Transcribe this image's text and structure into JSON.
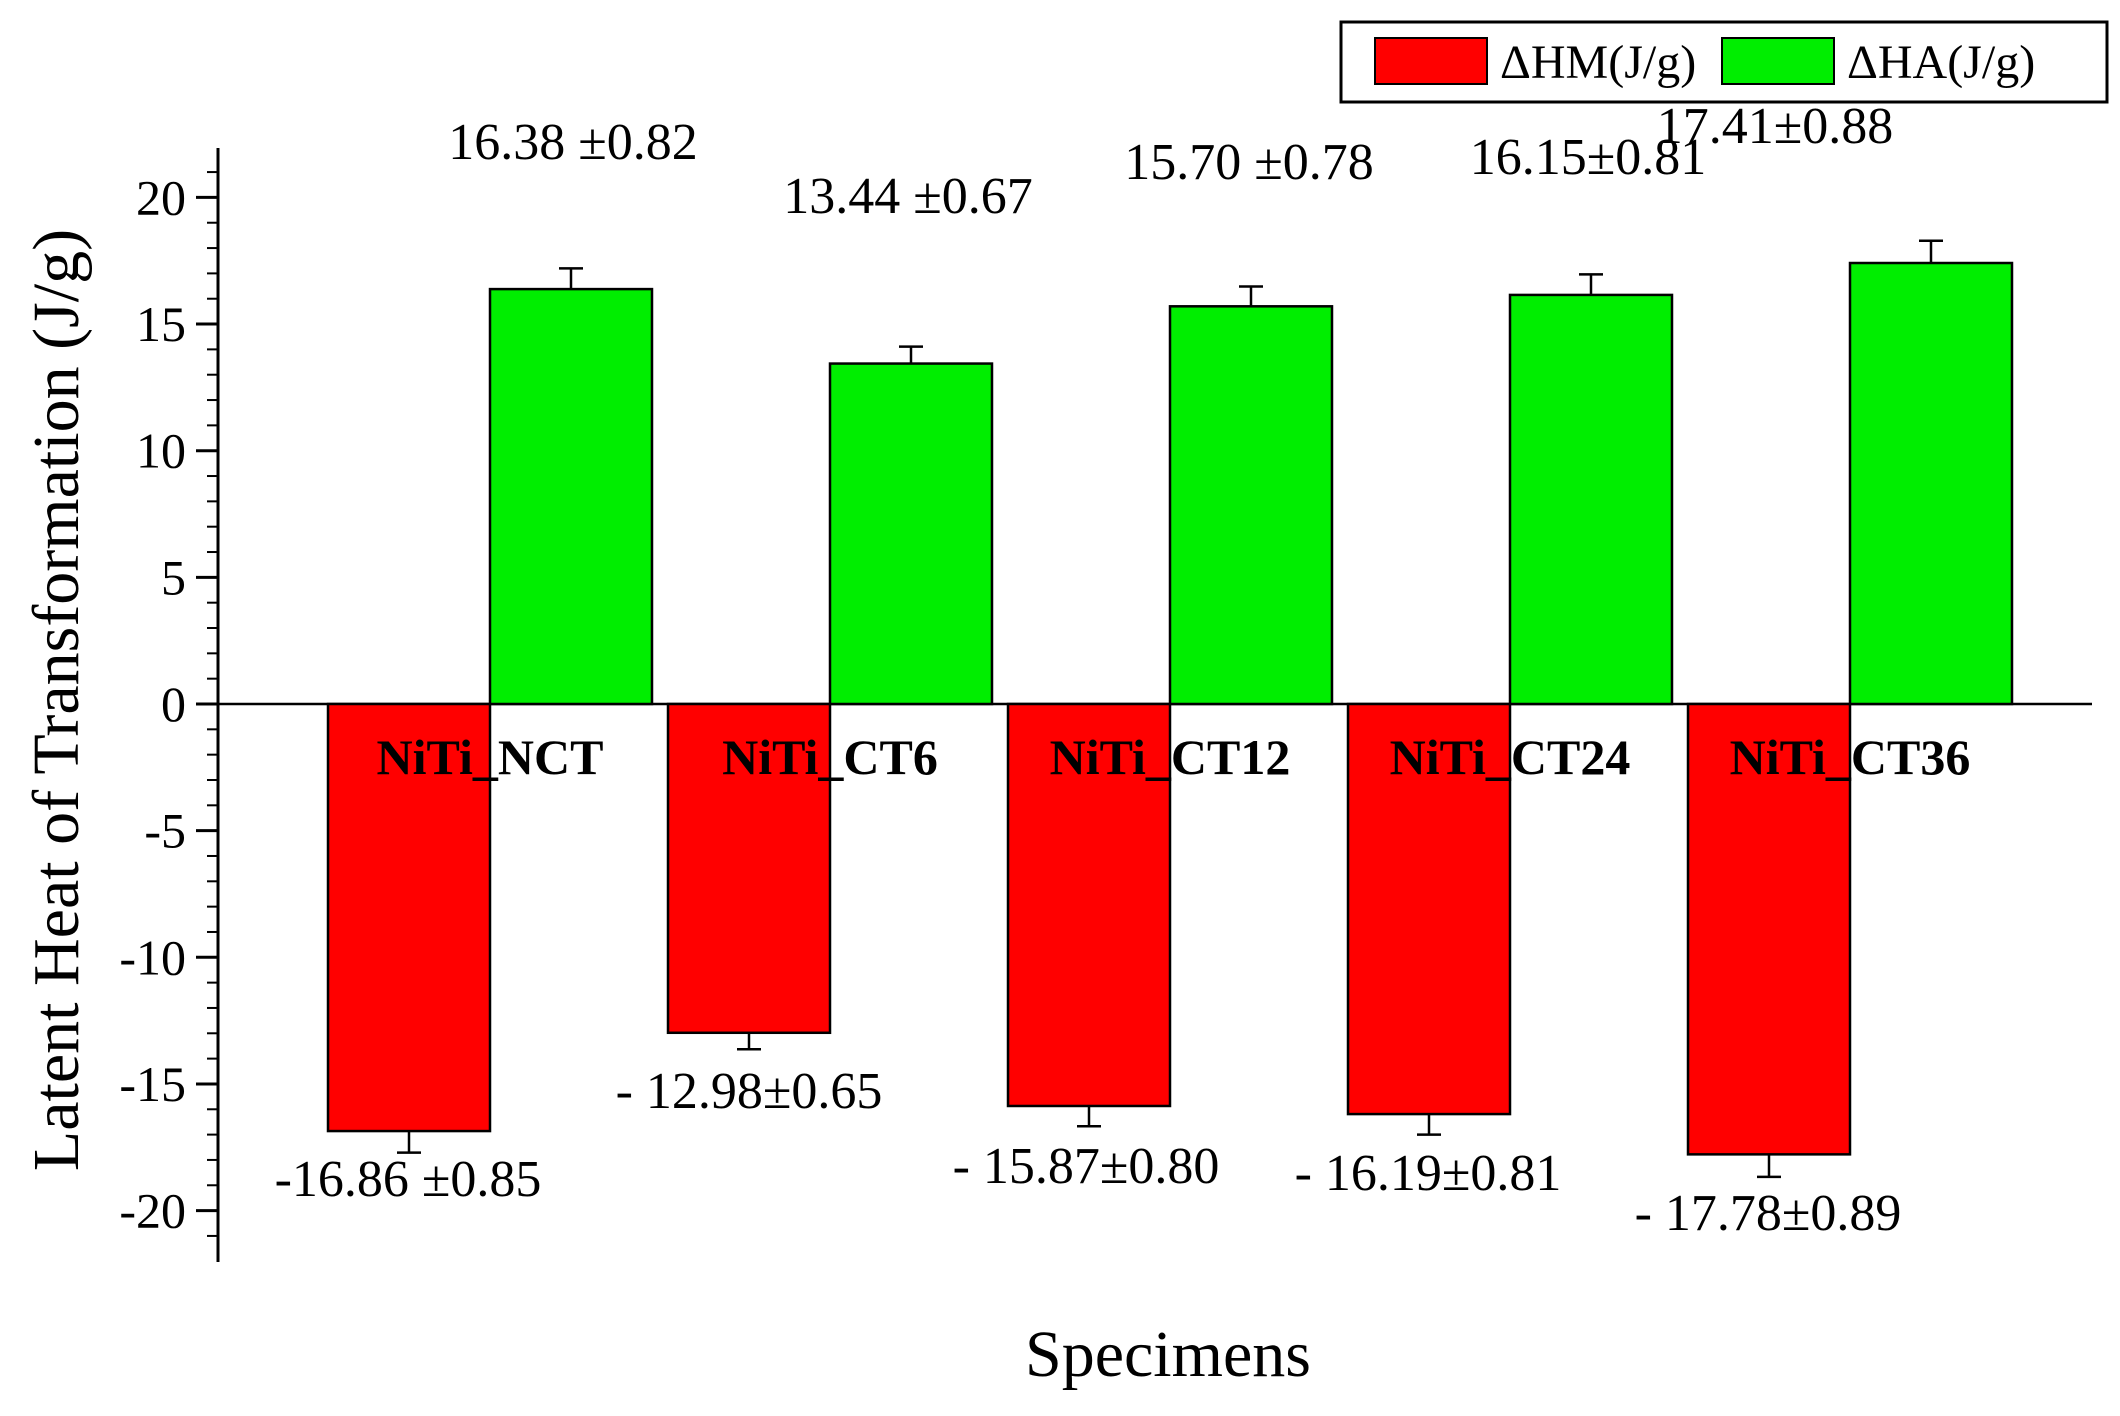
{
  "chart_data": {
    "type": "bar",
    "title": "",
    "xlabel": "Specimens",
    "ylabel": "Latent Heat of Transformation (J/g)",
    "ylim": [
      -22,
      22
    ],
    "yticks": [
      20,
      15,
      10,
      5,
      0,
      -5,
      -10,
      -15,
      -20
    ],
    "ytick_labels": [
      "20",
      "15",
      "10",
      "5",
      "0",
      "-5",
      "-10",
      "-15",
      "-20"
    ],
    "grid": false,
    "legend_position": "top-right",
    "categories": [
      "NiTi_NCT",
      "NiTi_CT6",
      "NiTi_CT12",
      "NiTi_CT24",
      "NiTi_CT36"
    ],
    "series": [
      {
        "name": "ΔHM(J/g)",
        "color": "#ff0000",
        "values": [
          -16.86,
          -12.98,
          -15.87,
          -16.19,
          -17.78
        ],
        "errors": [
          0.85,
          0.65,
          0.8,
          0.81,
          0.89
        ],
        "labels": [
          "-16.86 ±0.85",
          "- 12.98±0.65",
          "- 15.87±0.80",
          "- 16.19±0.81",
          "- 17.78±0.89"
        ]
      },
      {
        "name": "ΔHA(J/g)",
        "color": "#00ee00",
        "values": [
          16.38,
          13.44,
          15.7,
          16.15,
          17.41
        ],
        "errors": [
          0.82,
          0.67,
          0.78,
          0.81,
          0.88
        ],
        "labels": [
          "16.38 ±0.82",
          "13.44 ±0.67",
          "15.70 ±0.78",
          "16.15±0.81",
          "17.41±0.88"
        ]
      }
    ]
  }
}
